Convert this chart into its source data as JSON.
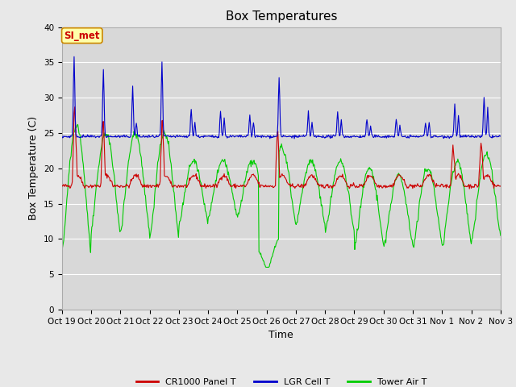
{
  "title": "Box Temperatures",
  "xlabel": "Time",
  "ylabel": "Box Temperature (C)",
  "ylim": [
    0,
    40
  ],
  "yticks": [
    0,
    5,
    10,
    15,
    20,
    25,
    30,
    35,
    40
  ],
  "xtick_labels": [
    "Oct 19",
    "Oct 20",
    "Oct 21",
    "Oct 22",
    "Oct 23",
    "Oct 24",
    "Oct 25",
    "Oct 26",
    "Oct 27",
    "Oct 28",
    "Oct 29",
    "Oct 30",
    "Oct 31",
    "Nov 1",
    "Nov 2",
    "Nov 3"
  ],
  "legend_labels": [
    "CR1000 Panel T",
    "LGR Cell T",
    "Tower Air T"
  ],
  "line_colors": [
    "#cc0000",
    "#0000cc",
    "#00cc00"
  ],
  "background_color": "#e8e8e8",
  "plot_bg_color": "#d8d8d8",
  "annotation_text": "SI_met",
  "annotation_bg": "#ffffaa",
  "annotation_border": "#cc8800",
  "annotation_text_color": "#cc0000",
  "title_fontsize": 11,
  "axis_fontsize": 9,
  "tick_fontsize": 7.5,
  "legend_fontsize": 8
}
